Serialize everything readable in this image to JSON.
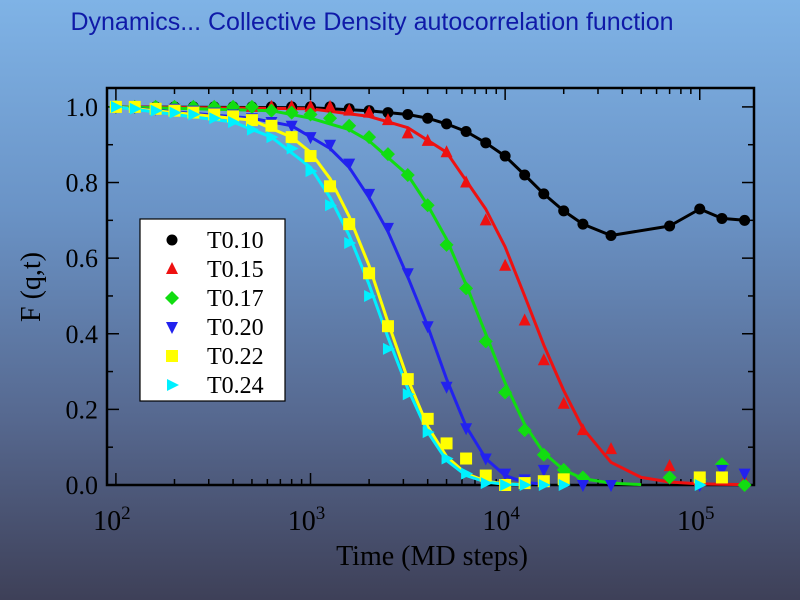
{
  "slide_title": "Dynamics... Collective Density autocorrelation function",
  "chart_data": {
    "type": "scatter",
    "xlabel": "Time (MD steps)",
    "ylabel": "F (q,t)",
    "xscale": "log",
    "xlim": [
      90,
      190000
    ],
    "ylim": [
      0,
      1.05
    ],
    "x_ticks": [
      {
        "value": 100,
        "base": "10",
        "exp": "2"
      },
      {
        "value": 1000,
        "base": "10",
        "exp": "3"
      },
      {
        "value": 10000,
        "base": "10",
        "exp": "4"
      },
      {
        "value": 100000,
        "base": "10",
        "exp": "5"
      }
    ],
    "y_ticks": [
      "0.0",
      "0.2",
      "0.4",
      "0.6",
      "0.8",
      "1.0"
    ],
    "legend_position": "left",
    "series": [
      {
        "name": "T0.10",
        "color": "#000000",
        "marker": "circle",
        "points": [
          [
            100,
            1.0
          ],
          [
            125,
            1.0
          ],
          [
            160,
            1.0
          ],
          [
            200,
            1.0
          ],
          [
            250,
            1.0
          ],
          [
            320,
            1.0
          ],
          [
            400,
            1.0
          ],
          [
            500,
            1.0
          ],
          [
            630,
            1.0
          ],
          [
            800,
            1.0
          ],
          [
            1000,
            1.0
          ],
          [
            1260,
            1.0
          ],
          [
            1580,
            0.995
          ],
          [
            2000,
            0.99
          ],
          [
            2500,
            0.985
          ],
          [
            3160,
            0.98
          ],
          [
            4000,
            0.97
          ],
          [
            5000,
            0.955
          ],
          [
            6300,
            0.935
          ],
          [
            7950,
            0.905
          ],
          [
            10000,
            0.87
          ],
          [
            12600,
            0.82
          ],
          [
            15800,
            0.77
          ],
          [
            20000,
            0.725
          ],
          [
            25100,
            0.69
          ],
          [
            35000,
            0.66
          ],
          [
            70000,
            0.685
          ],
          [
            100000,
            0.73
          ],
          [
            130000,
            0.705
          ],
          [
            170000,
            0.7
          ]
        ],
        "fit": [
          [
            100,
            1.0
          ],
          [
            1000,
            0.998
          ],
          [
            2000,
            0.99
          ],
          [
            3160,
            0.98
          ],
          [
            4000,
            0.97
          ],
          [
            5000,
            0.955
          ],
          [
            6300,
            0.935
          ],
          [
            7950,
            0.905
          ],
          [
            10000,
            0.87
          ],
          [
            12600,
            0.82
          ],
          [
            15800,
            0.77
          ],
          [
            20000,
            0.725
          ],
          [
            25100,
            0.69
          ],
          [
            35000,
            0.66
          ],
          [
            70000,
            0.685
          ],
          [
            100000,
            0.73
          ],
          [
            130000,
            0.705
          ],
          [
            170000,
            0.7
          ]
        ]
      },
      {
        "name": "T0.15",
        "color": "#ee1111",
        "marker": "triangle-up",
        "points": [
          [
            100,
            1.0
          ],
          [
            125,
            1.0
          ],
          [
            160,
            1.0
          ],
          [
            200,
            1.0
          ],
          [
            250,
            1.0
          ],
          [
            320,
            1.0
          ],
          [
            400,
            1.0
          ],
          [
            500,
            1.0
          ],
          [
            630,
            1.0
          ],
          [
            800,
            1.0
          ],
          [
            1000,
            1.0
          ],
          [
            1260,
            1.0
          ],
          [
            1580,
            0.99
          ],
          [
            2000,
            0.985
          ],
          [
            2500,
            0.965
          ],
          [
            3160,
            0.93
          ],
          [
            4000,
            0.91
          ],
          [
            5000,
            0.88
          ],
          [
            6300,
            0.8
          ],
          [
            7950,
            0.7
          ],
          [
            10000,
            0.58
          ],
          [
            12600,
            0.435
          ],
          [
            15800,
            0.33
          ],
          [
            20000,
            0.215
          ],
          [
            25100,
            0.145
          ],
          [
            35000,
            0.095
          ],
          [
            70000,
            0.05
          ],
          [
            100000,
            0.01
          ],
          [
            130000,
            0.015
          ],
          [
            170000,
            0.01
          ]
        ],
        "fit": [
          [
            100,
            1.0
          ],
          [
            1000,
            0.995
          ],
          [
            2000,
            0.975
          ],
          [
            3160,
            0.945
          ],
          [
            5000,
            0.88
          ],
          [
            7950,
            0.73
          ],
          [
            10000,
            0.63
          ],
          [
            12600,
            0.5
          ],
          [
            15800,
            0.37
          ],
          [
            20000,
            0.25
          ],
          [
            25100,
            0.15
          ],
          [
            35000,
            0.06
          ],
          [
            50000,
            0.02
          ],
          [
            70000,
            0.008
          ],
          [
            100000,
            0.003
          ],
          [
            170000,
            0.001
          ]
        ]
      },
      {
        "name": "T0.17",
        "color": "#11dd11",
        "marker": "diamond",
        "points": [
          [
            100,
            1.0
          ],
          [
            125,
            1.0
          ],
          [
            160,
            1.0
          ],
          [
            200,
            1.0
          ],
          [
            250,
            1.0
          ],
          [
            320,
            1.0
          ],
          [
            400,
            1.0
          ],
          [
            500,
            1.0
          ],
          [
            630,
            0.99
          ],
          [
            800,
            0.985
          ],
          [
            1000,
            0.98
          ],
          [
            1260,
            0.97
          ],
          [
            1580,
            0.95
          ],
          [
            2000,
            0.92
          ],
          [
            2500,
            0.875
          ],
          [
            3160,
            0.82
          ],
          [
            4000,
            0.74
          ],
          [
            5000,
            0.635
          ],
          [
            6300,
            0.52
          ],
          [
            7950,
            0.38
          ],
          [
            10000,
            0.245
          ],
          [
            12600,
            0.145
          ],
          [
            15800,
            0.08
          ],
          [
            20000,
            0.04
          ],
          [
            25100,
            0.02
          ],
          [
            70000,
            0.02
          ],
          [
            100000,
            0.015
          ],
          [
            130000,
            0.055
          ],
          [
            170000,
            0.0
          ]
        ],
        "fit": [
          [
            100,
            1.0
          ],
          [
            630,
            0.99
          ],
          [
            1000,
            0.97
          ],
          [
            1580,
            0.94
          ],
          [
            2000,
            0.91
          ],
          [
            3160,
            0.82
          ],
          [
            4000,
            0.74
          ],
          [
            5000,
            0.65
          ],
          [
            6300,
            0.53
          ],
          [
            7950,
            0.4
          ],
          [
            10000,
            0.27
          ],
          [
            12600,
            0.16
          ],
          [
            15800,
            0.085
          ],
          [
            20000,
            0.04
          ],
          [
            25100,
            0.017
          ],
          [
            35000,
            0.005
          ],
          [
            50000,
            0.001
          ]
        ]
      },
      {
        "name": "T0.20",
        "color": "#2222ee",
        "marker": "triangle-down",
        "points": [
          [
            100,
            1.0
          ],
          [
            125,
            1.0
          ],
          [
            160,
            0.995
          ],
          [
            200,
            0.995
          ],
          [
            250,
            0.99
          ],
          [
            320,
            0.985
          ],
          [
            400,
            0.98
          ],
          [
            500,
            0.97
          ],
          [
            630,
            0.96
          ],
          [
            800,
            0.95
          ],
          [
            1000,
            0.92
          ],
          [
            1260,
            0.9
          ],
          [
            1580,
            0.85
          ],
          [
            2000,
            0.77
          ],
          [
            2500,
            0.68
          ],
          [
            3160,
            0.56
          ],
          [
            4000,
            0.42
          ],
          [
            5000,
            0.26
          ],
          [
            6300,
            0.15
          ],
          [
            7950,
            0.07
          ],
          [
            10000,
            0.03
          ],
          [
            12600,
            0.015
          ],
          [
            15800,
            0.04
          ],
          [
            20000,
            0.01
          ],
          [
            25100,
            0.0
          ],
          [
            35000,
            0.0
          ],
          [
            100000,
            0.0
          ],
          [
            130000,
            0.04
          ],
          [
            170000,
            0.03
          ]
        ],
        "fit": [
          [
            100,
            1.0
          ],
          [
            500,
            0.97
          ],
          [
            800,
            0.95
          ],
          [
            1260,
            0.89
          ],
          [
            1580,
            0.84
          ],
          [
            2000,
            0.76
          ],
          [
            2500,
            0.67
          ],
          [
            3160,
            0.55
          ],
          [
            4000,
            0.42
          ],
          [
            5000,
            0.28
          ],
          [
            6300,
            0.155
          ],
          [
            7950,
            0.07
          ],
          [
            10000,
            0.025
          ],
          [
            12600,
            0.007
          ],
          [
            15800,
            0.002
          ]
        ]
      },
      {
        "name": "T0.22",
        "color": "#ffff00",
        "marker": "square",
        "points": [
          [
            100,
            1.0
          ],
          [
            125,
            1.0
          ],
          [
            160,
            0.995
          ],
          [
            200,
            0.99
          ],
          [
            250,
            0.985
          ],
          [
            320,
            0.98
          ],
          [
            400,
            0.975
          ],
          [
            500,
            0.965
          ],
          [
            630,
            0.95
          ],
          [
            800,
            0.92
          ],
          [
            1000,
            0.87
          ],
          [
            1260,
            0.79
          ],
          [
            1580,
            0.69
          ],
          [
            2000,
            0.56
          ],
          [
            2500,
            0.42
          ],
          [
            3160,
            0.28
          ],
          [
            4000,
            0.175
          ],
          [
            5000,
            0.11
          ],
          [
            6300,
            0.07
          ],
          [
            7950,
            0.025
          ],
          [
            10000,
            0.0
          ],
          [
            12600,
            0.005
          ],
          [
            15800,
            0.01
          ],
          [
            20000,
            0.015
          ],
          [
            100000,
            0.02
          ],
          [
            130000,
            0.02
          ]
        ],
        "fit": [
          [
            100,
            1.0
          ],
          [
            500,
            0.965
          ],
          [
            800,
            0.92
          ],
          [
            1000,
            0.88
          ],
          [
            1260,
            0.81
          ],
          [
            1580,
            0.71
          ],
          [
            2000,
            0.58
          ],
          [
            2500,
            0.43
          ],
          [
            3160,
            0.28
          ],
          [
            4000,
            0.155
          ],
          [
            5000,
            0.075
          ],
          [
            6300,
            0.03
          ],
          [
            7950,
            0.01
          ],
          [
            10000,
            0.003
          ],
          [
            12600,
            0.001
          ]
        ]
      },
      {
        "name": "T0.24",
        "color": "#00f0ff",
        "marker": "triangle-right",
        "points": [
          [
            100,
            1.0
          ],
          [
            125,
            0.995
          ],
          [
            160,
            0.99
          ],
          [
            200,
            0.985
          ],
          [
            250,
            0.98
          ],
          [
            320,
            0.97
          ],
          [
            400,
            0.96
          ],
          [
            500,
            0.94
          ],
          [
            630,
            0.92
          ],
          [
            800,
            0.89
          ],
          [
            1000,
            0.83
          ],
          [
            1260,
            0.74
          ],
          [
            1580,
            0.64
          ],
          [
            2000,
            0.5
          ],
          [
            2500,
            0.36
          ],
          [
            3160,
            0.24
          ],
          [
            4000,
            0.14
          ],
          [
            5000,
            0.07
          ],
          [
            6300,
            0.03
          ],
          [
            7950,
            0.005
          ],
          [
            10000,
            0.0
          ],
          [
            12600,
            0.0
          ],
          [
            15800,
            0.0
          ],
          [
            20000,
            0.0
          ],
          [
            100000,
            0.0
          ]
        ],
        "fit": [
          [
            100,
            1.0
          ],
          [
            400,
            0.96
          ],
          [
            630,
            0.92
          ],
          [
            1000,
            0.84
          ],
          [
            1260,
            0.76
          ],
          [
            1580,
            0.66
          ],
          [
            2000,
            0.53
          ],
          [
            2500,
            0.39
          ],
          [
            3160,
            0.255
          ],
          [
            4000,
            0.14
          ],
          [
            5000,
            0.065
          ],
          [
            6300,
            0.025
          ],
          [
            7950,
            0.008
          ],
          [
            10000,
            0.002
          ],
          [
            12600,
            0.0005
          ]
        ]
      }
    ]
  }
}
